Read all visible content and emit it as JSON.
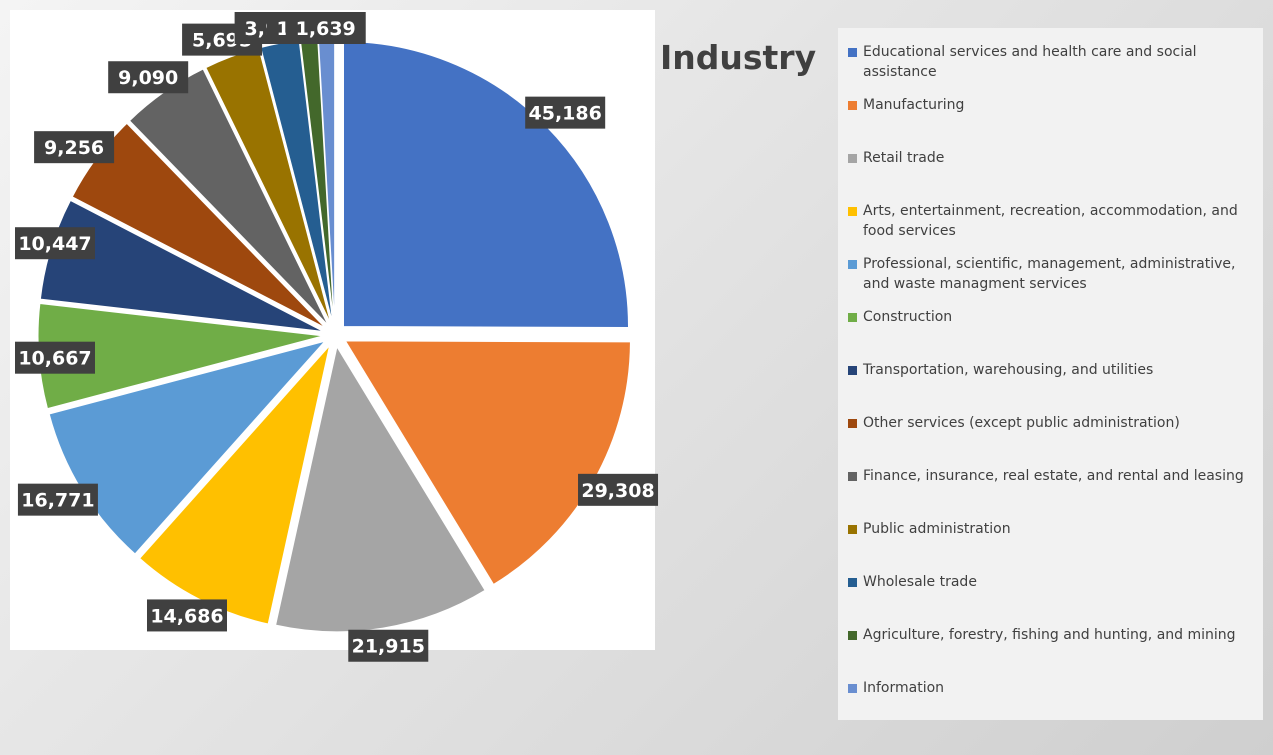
{
  "chart_data": {
    "type": "pie",
    "title": "Industry",
    "categories": [
      "Educational services and health care and social assistance",
      "Manufacturing",
      "Retail trade",
      "Arts, entertainment, recreation, accommodation, and food services",
      "Professional, scientific, management, administrative, and waste managment services",
      "Construction",
      "Transportation, warehousing, and utilities",
      "Other services (except public administration)",
      "Finance, insurance, real estate, and rental and leasing",
      "Public administration",
      "Wholesale trade",
      "Agriculture, forestry, fishing and hunting, and mining",
      "Information"
    ],
    "values": [
      45186,
      29308,
      21915,
      14686,
      16771,
      10667,
      10447,
      9256,
      9090,
      5695,
      3946,
      1753,
      1639
    ],
    "value_labels": [
      "45,186",
      "29,308",
      "21,915",
      "14,686",
      "16,771",
      "10,667",
      "10,447",
      "9,256",
      "9,090",
      "5,695",
      "3,946",
      "1,753",
      "1,639"
    ],
    "colors": [
      "#4472c4",
      "#ed7d31",
      "#a5a5a5",
      "#ffc000",
      "#5b9bd5",
      "#70ad47",
      "#264478",
      "#9e480e",
      "#636363",
      "#997300",
      "#255e91",
      "#43682b",
      "#698ed0"
    ]
  }
}
